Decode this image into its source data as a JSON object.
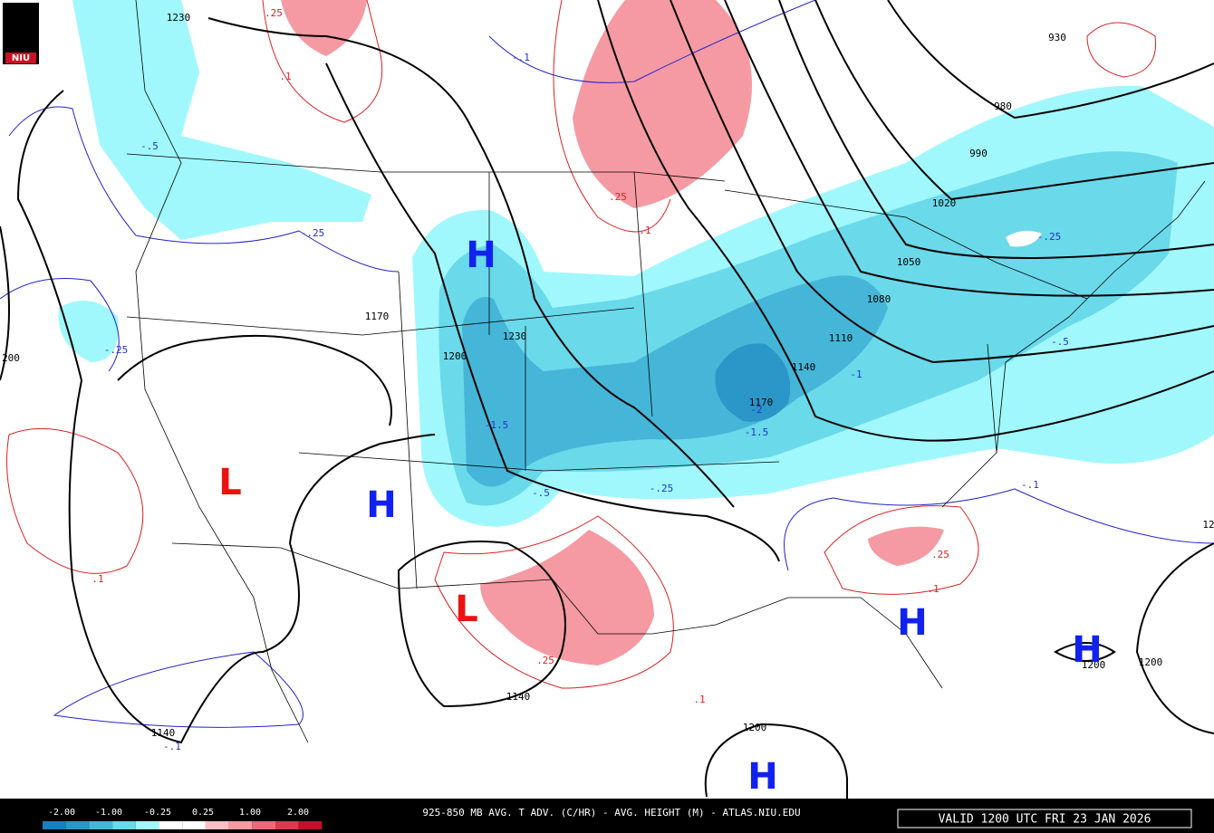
{
  "logo": "NIU",
  "contour_labels": [
    {
      "text": "1230",
      "kind": "height"
    },
    {
      "text": "930",
      "kind": "height"
    },
    {
      "text": "980",
      "kind": "height"
    },
    {
      "text": "990",
      "kind": "height"
    },
    {
      "text": "1020",
      "kind": "height"
    },
    {
      "text": "1050",
      "kind": "height"
    },
    {
      "text": "1080",
      "kind": "height"
    },
    {
      "text": "1110",
      "kind": "height"
    },
    {
      "text": "1140",
      "kind": "height"
    },
    {
      "text": "1170",
      "kind": "height"
    },
    {
      "text": "1170",
      "kind": "height"
    },
    {
      "text": "1200",
      "kind": "height"
    },
    {
      "text": "1230",
      "kind": "height"
    },
    {
      "text": "200",
      "kind": "height"
    },
    {
      "text": "1140",
      "kind": "height"
    },
    {
      "text": "1140",
      "kind": "height"
    },
    {
      "text": "1200",
      "kind": "height"
    },
    {
      "text": "1200",
      "kind": "height"
    },
    {
      "text": "1200",
      "kind": "height"
    },
    {
      "text": "12",
      "kind": "height"
    },
    {
      "text": "-.1",
      "kind": "cold"
    },
    {
      "text": "-.5",
      "kind": "cold"
    },
    {
      "text": "-.25",
      "kind": "cold"
    },
    {
      "text": "-.25",
      "kind": "cold"
    },
    {
      "text": "-1.5",
      "kind": "cold"
    },
    {
      "text": "-.5",
      "kind": "cold"
    },
    {
      "text": "-.25",
      "kind": "cold"
    },
    {
      "text": "-2",
      "kind": "cold"
    },
    {
      "text": "-1.5",
      "kind": "cold"
    },
    {
      "text": "-1",
      "kind": "cold"
    },
    {
      "text": "-.25",
      "kind": "cold"
    },
    {
      "text": "-.5",
      "kind": "cold"
    },
    {
      "text": "-.1",
      "kind": "cold"
    },
    {
      "text": "-.1",
      "kind": "cold"
    },
    {
      "text": ".25",
      "kind": "warm"
    },
    {
      "text": ".1",
      "kind": "warm"
    },
    {
      "text": ".25",
      "kind": "warm"
    },
    {
      "text": ".1",
      "kind": "warm"
    },
    {
      "text": ".1",
      "kind": "warm"
    },
    {
      "text": ".25",
      "kind": "warm"
    },
    {
      "text": ".1",
      "kind": "warm"
    },
    {
      "text": ".25",
      "kind": "warm"
    },
    {
      "text": ".1",
      "kind": "warm"
    }
  ],
  "centers": [
    "H",
    "H",
    "H",
    "H",
    "H",
    "L",
    "L"
  ],
  "colorbar": {
    "labels": [
      "-2.00",
      "-1.00",
      "-0.25",
      "0.25",
      "1.00",
      "2.00"
    ]
  },
  "footer": {
    "title": "925-850 MB AVG. T ADV. (C/HR) - AVG. HEIGHT (M) - ATLAS.NIU.EDU",
    "valid": "VALID 1200 UTC FRI 23 JAN 2026"
  }
}
